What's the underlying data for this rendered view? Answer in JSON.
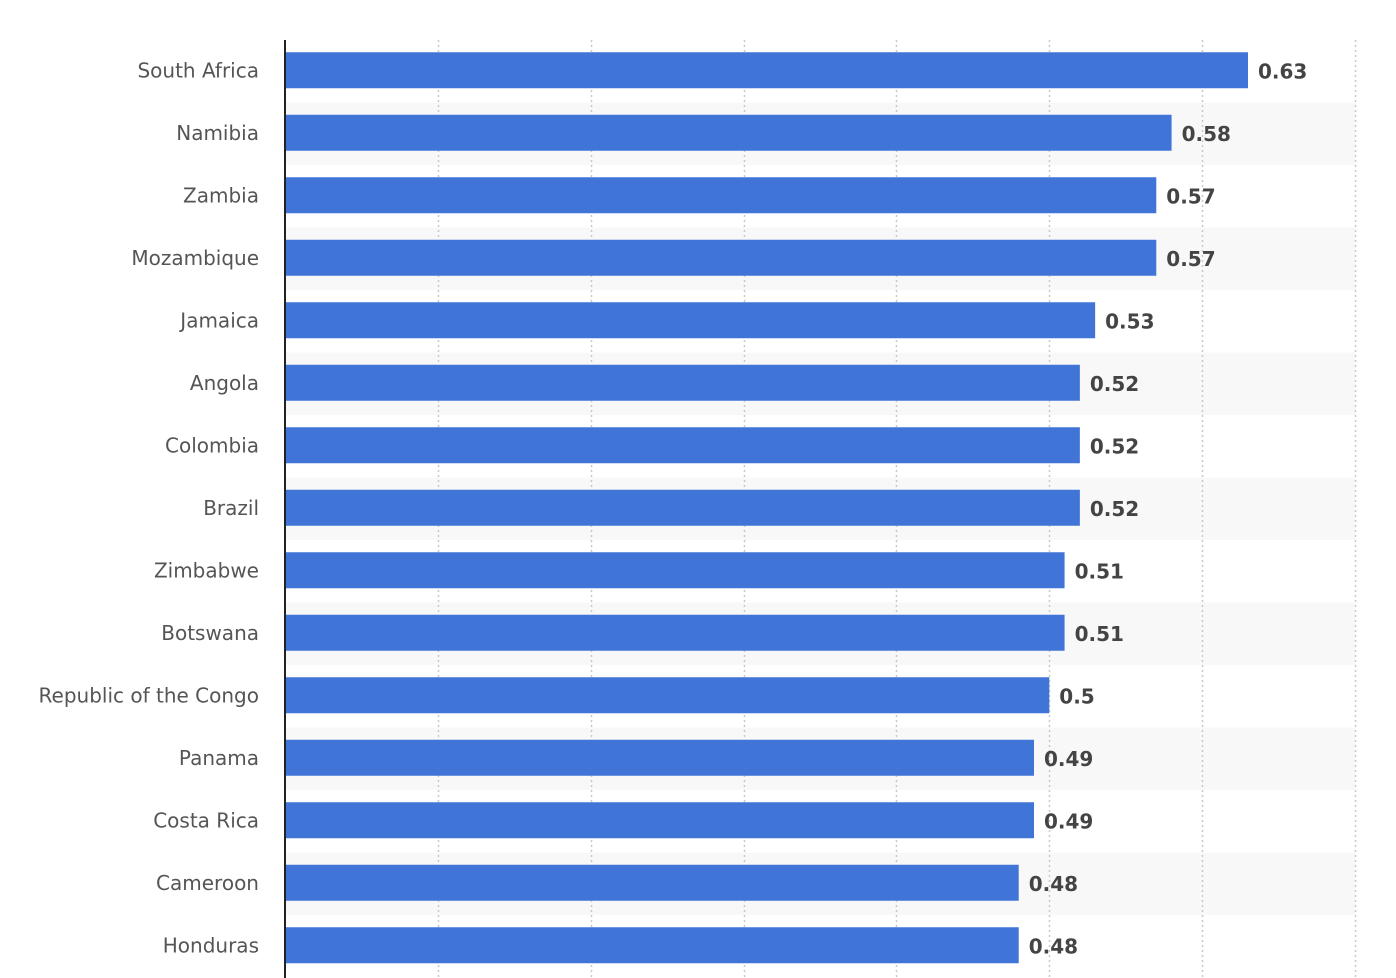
{
  "chart_data": {
    "type": "bar",
    "orientation": "horizontal",
    "categories": [
      "South Africa",
      "Namibia",
      "Zambia",
      "Mozambique",
      "Jamaica",
      "Angola",
      "Colombia",
      "Brazil",
      "Zimbabwe",
      "Botswana",
      "Republic of the Congo",
      "Panama",
      "Costa Rica",
      "Cameroon",
      "Honduras"
    ],
    "values": [
      0.63,
      0.58,
      0.57,
      0.57,
      0.53,
      0.52,
      0.52,
      0.52,
      0.51,
      0.51,
      0.5,
      0.49,
      0.49,
      0.48,
      0.48
    ],
    "data_labels": [
      "0.63",
      "0.58",
      "0.57",
      "0.57",
      "0.53",
      "0.52",
      "0.52",
      "0.52",
      "0.51",
      "0.51",
      "0.5",
      "0.49",
      "0.49",
      "0.48",
      "0.48"
    ],
    "xlim": [
      0,
      0.7
    ],
    "grid": true,
    "bar_color": "#4074d7",
    "band_color": "#f8f8f8",
    "title": "",
    "xlabel": "",
    "ylabel": ""
  }
}
